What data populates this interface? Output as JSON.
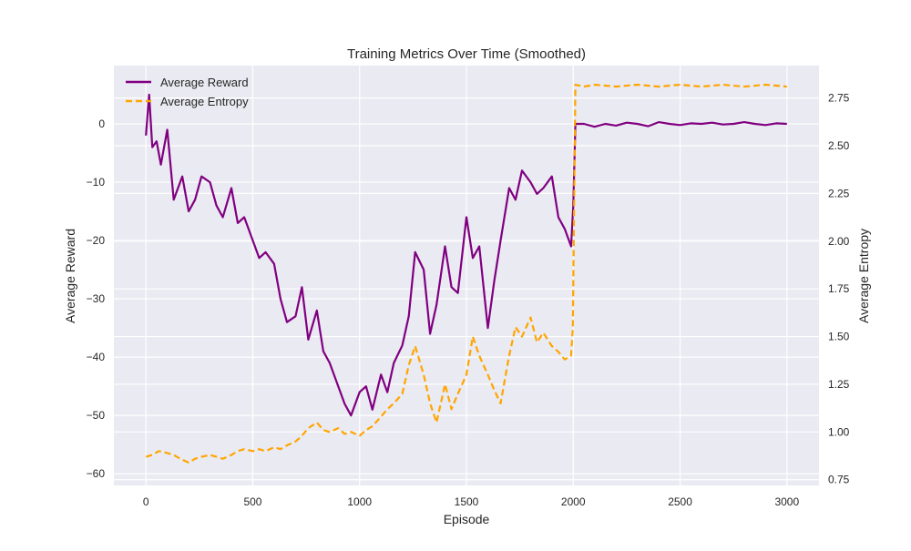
{
  "chart_data": {
    "type": "line",
    "title": "Training Metrics Over Time (Smoothed)",
    "xlabel": "Episode",
    "ylabel_left": "Average Reward",
    "ylabel_right": "Average Entropy",
    "xlim": [
      -150,
      3150
    ],
    "ylim_left": [
      -62,
      10
    ],
    "ylim_right": [
      0.72,
      2.92
    ],
    "x_ticks": [
      0,
      500,
      1000,
      1500,
      2000,
      2500,
      3000
    ],
    "y_left_ticks": [
      0,
      -10,
      -20,
      -30,
      -40,
      -50,
      -60
    ],
    "y_right_ticks": [
      0.75,
      1.0,
      1.25,
      1.5,
      1.75,
      2.0,
      2.25,
      2.5,
      2.75
    ],
    "grid": true,
    "background": "#eaeaf2",
    "legend": {
      "placement": "top-left",
      "entries": [
        "Average Reward",
        "Average Entropy"
      ]
    },
    "series": [
      {
        "name": "Average Reward",
        "axis": "left",
        "color": "#800080",
        "style": "solid",
        "x": [
          0,
          15,
          30,
          50,
          70,
          100,
          130,
          150,
          170,
          200,
          230,
          260,
          300,
          330,
          360,
          400,
          430,
          460,
          500,
          530,
          560,
          600,
          630,
          660,
          700,
          730,
          760,
          800,
          830,
          860,
          900,
          930,
          960,
          1000,
          1030,
          1060,
          1100,
          1130,
          1160,
          1200,
          1230,
          1260,
          1300,
          1330,
          1360,
          1400,
          1430,
          1460,
          1500,
          1530,
          1560,
          1600,
          1630,
          1660,
          1700,
          1730,
          1760,
          1800,
          1830,
          1860,
          1900,
          1930,
          1960,
          1990,
          2000,
          2010,
          2050,
          2100,
          2150,
          2200,
          2250,
          2300,
          2350,
          2400,
          2450,
          2500,
          2550,
          2600,
          2650,
          2700,
          2750,
          2800,
          2850,
          2900,
          2950,
          3000
        ],
        "y": [
          -2,
          5,
          -4,
          -3,
          -7,
          -1,
          -13,
          -11,
          -9,
          -15,
          -13,
          -9,
          -10,
          -14,
          -16,
          -11,
          -17,
          -16,
          -20,
          -23,
          -22,
          -24,
          -30,
          -34,
          -33,
          -28,
          -37,
          -32,
          -39,
          -41,
          -45,
          -48,
          -50,
          -46,
          -45,
          -49,
          -43,
          -46,
          -41,
          -38,
          -33,
          -22,
          -25,
          -36,
          -31,
          -21,
          -28,
          -29,
          -16,
          -23,
          -21,
          -35,
          -27,
          -20,
          -11,
          -13,
          -8,
          -10,
          -12,
          -11,
          -9,
          -16,
          -18,
          -21,
          -14,
          0,
          0,
          -0.5,
          0,
          -0.3,
          0.2,
          0,
          -0.4,
          0.3,
          0,
          -0.2,
          0.1,
          0,
          0.2,
          -0.1,
          0,
          0.3,
          0,
          -0.2,
          0.1,
          0
        ]
      },
      {
        "name": "Average Entropy",
        "axis": "right",
        "color": "#ffa500",
        "style": "dashed",
        "x": [
          0,
          30,
          60,
          100,
          130,
          160,
          200,
          230,
          260,
          300,
          330,
          360,
          400,
          430,
          460,
          500,
          530,
          560,
          600,
          630,
          660,
          700,
          730,
          760,
          800,
          830,
          860,
          900,
          930,
          960,
          1000,
          1030,
          1060,
          1100,
          1130,
          1160,
          1200,
          1230,
          1260,
          1300,
          1330,
          1360,
          1400,
          1430,
          1460,
          1500,
          1530,
          1560,
          1600,
          1630,
          1660,
          1700,
          1730,
          1760,
          1800,
          1830,
          1860,
          1900,
          1930,
          1960,
          1990,
          1998,
          2010,
          2050,
          2100,
          2200,
          2300,
          2400,
          2500,
          2600,
          2700,
          2800,
          2900,
          3000
        ],
        "y": [
          0.87,
          0.88,
          0.9,
          0.89,
          0.88,
          0.86,
          0.84,
          0.86,
          0.87,
          0.88,
          0.87,
          0.86,
          0.88,
          0.9,
          0.91,
          0.9,
          0.91,
          0.9,
          0.92,
          0.91,
          0.93,
          0.95,
          0.98,
          1.02,
          1.05,
          1.01,
          1.0,
          1.02,
          0.99,
          1.0,
          0.98,
          1.01,
          1.03,
          1.08,
          1.12,
          1.15,
          1.2,
          1.35,
          1.45,
          1.3,
          1.15,
          1.05,
          1.25,
          1.12,
          1.2,
          1.3,
          1.5,
          1.4,
          1.3,
          1.22,
          1.15,
          1.4,
          1.55,
          1.5,
          1.6,
          1.47,
          1.52,
          1.45,
          1.42,
          1.38,
          1.4,
          1.55,
          2.82,
          2.81,
          2.82,
          2.81,
          2.82,
          2.81,
          2.82,
          2.81,
          2.82,
          2.81,
          2.82,
          2.81
        ]
      }
    ]
  }
}
